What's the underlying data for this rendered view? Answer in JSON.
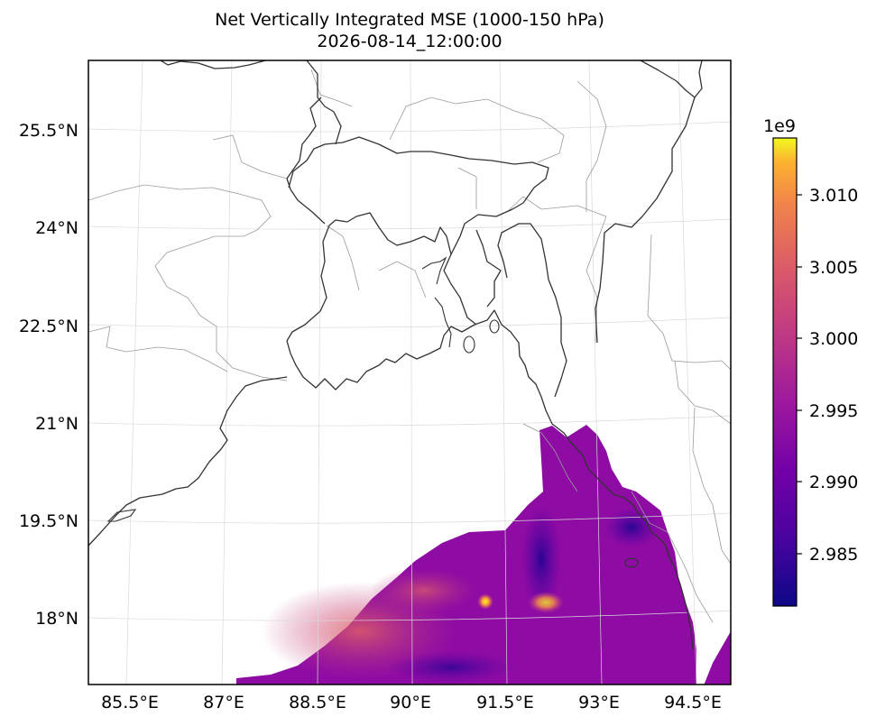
{
  "title": {
    "line1": "Net Vertically Integrated MSE (1000-150 hPa)",
    "line2": "2026-08-14_12:00:00"
  },
  "map": {
    "lon_ticks": [
      "85.5°E",
      "87°E",
      "88.5°E",
      "90°E",
      "91.5°E",
      "93°E",
      "94.5°E"
    ],
    "lat_ticks": [
      "25.5°N",
      "24°N",
      "22.5°N",
      "21°N",
      "19.5°N",
      "18°N"
    ],
    "gridlines": true,
    "coastline_color": "#333333",
    "boundary_color": "#999999"
  },
  "colorbar": {
    "colormap": "plasma",
    "multiplier": "1e9",
    "ticks": [
      "3.010",
      "3.005",
      "3.000",
      "2.995",
      "2.990",
      "2.985"
    ],
    "range": [
      2.9813,
      3.0143
    ],
    "placement": "right",
    "orientation": "vertical"
  }
}
